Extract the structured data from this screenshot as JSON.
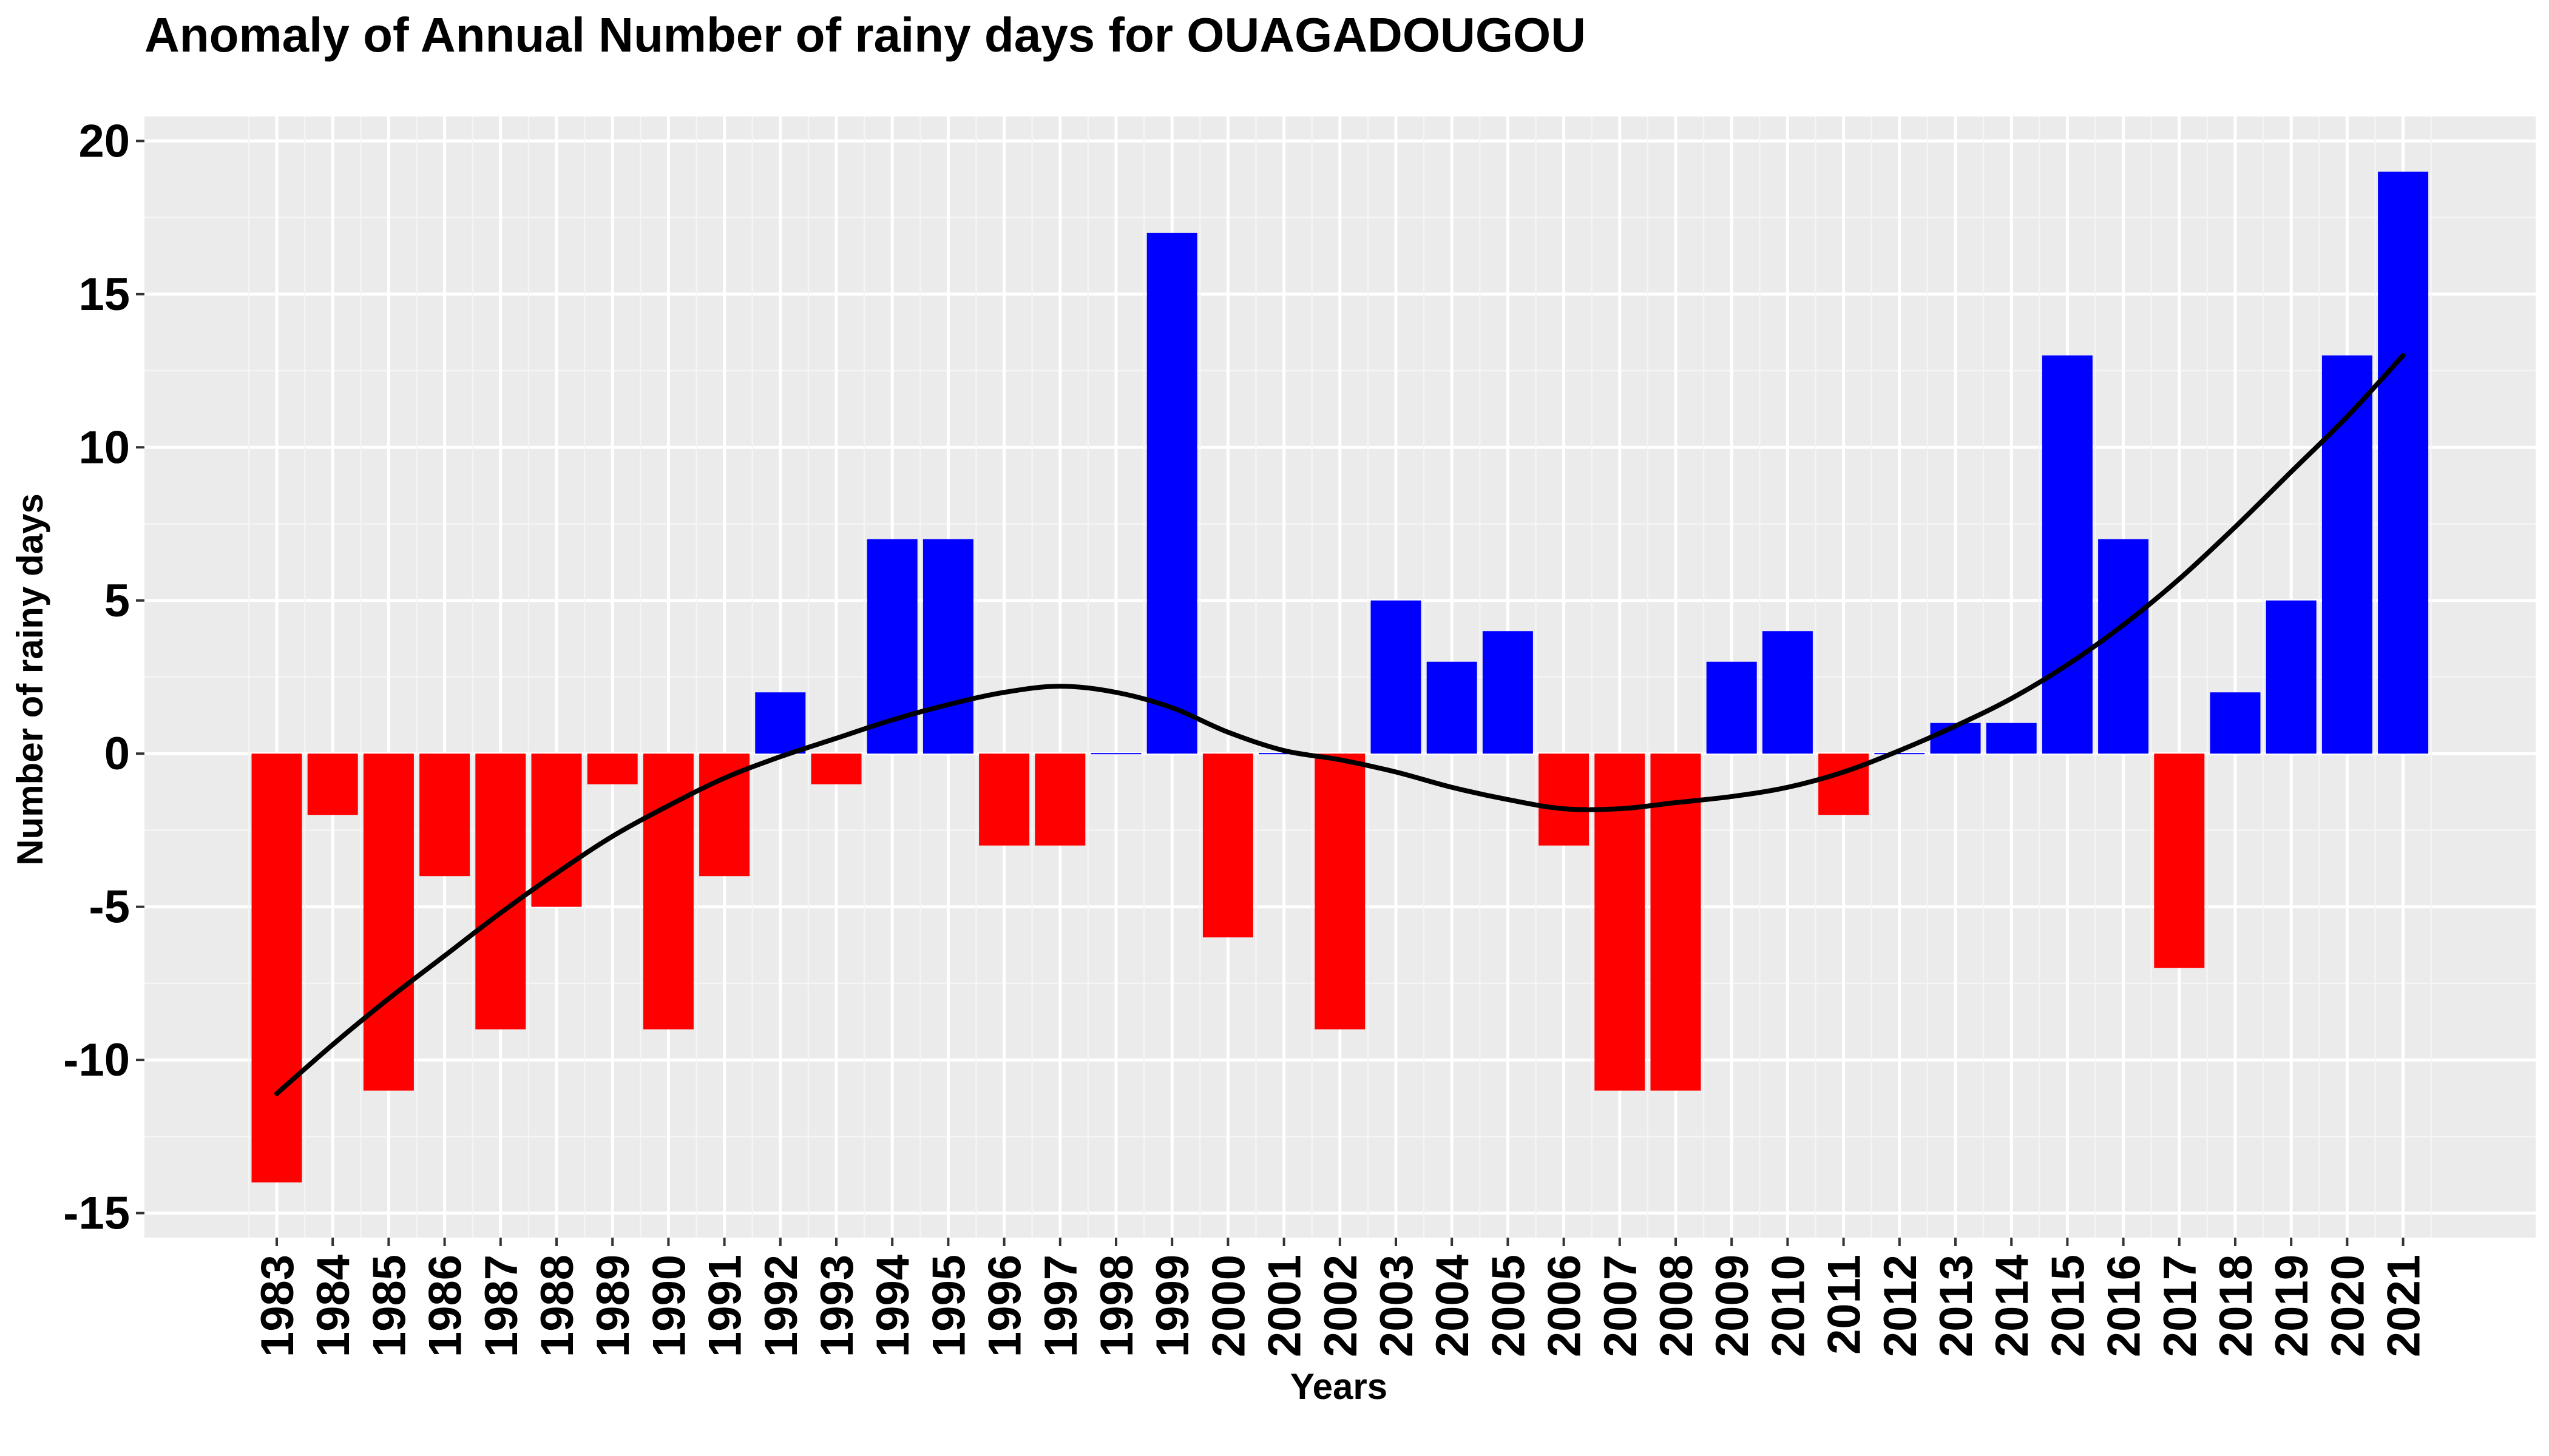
{
  "chart_data": {
    "type": "bar",
    "title": "Anomaly of Annual Number of rainy days for OUAGADOUGOU",
    "xlabel": "Years",
    "ylabel": "Number of rainy days",
    "ylim": [
      -15.8,
      20.8
    ],
    "yticks": [
      20,
      15,
      10,
      5,
      0,
      -5,
      -10,
      -15
    ],
    "ytick_labels": [
      "20",
      "15",
      "10",
      "5",
      "0",
      "-5",
      "-10",
      "-15"
    ],
    "grid": true,
    "categories": [
      "1983",
      "1984",
      "1985",
      "1986",
      "1987",
      "1988",
      "1989",
      "1990",
      "1991",
      "1992",
      "1993",
      "1994",
      "1995",
      "1996",
      "1997",
      "1998",
      "1999",
      "2000",
      "2001",
      "2002",
      "2003",
      "2004",
      "2005",
      "2006",
      "2007",
      "2008",
      "2009",
      "2010",
      "2011",
      "2012",
      "2013",
      "2014",
      "2015",
      "2016",
      "2017",
      "2018",
      "2019",
      "2020",
      "2021"
    ],
    "values": [
      -14,
      -2,
      -11,
      -4,
      -9,
      -5,
      -1,
      -9,
      -4,
      2,
      -1,
      7,
      7,
      -3,
      -3,
      0,
      17,
      -6,
      0,
      -9,
      5,
      3,
      4,
      -3,
      -11,
      -11,
      3,
      4,
      -2,
      0,
      1,
      1,
      13,
      7,
      -7,
      2,
      5,
      13,
      19
    ],
    "trend": {
      "values": [
        -11.1,
        -9.5,
        -8,
        -6.6,
        -5.2,
        -3.9,
        -2.7,
        -1.7,
        -0.8,
        -0.1,
        0.5,
        1.1,
        1.6,
        2,
        2.2,
        2,
        1.5,
        0.7,
        0.1,
        -0.2,
        -0.6,
        -1.1,
        -1.5,
        -1.8,
        -1.8,
        -1.6,
        -1.4,
        -1.1,
        -0.6,
        0.1,
        0.9,
        1.8,
        2.9,
        4.2,
        5.7,
        7.4,
        9.2,
        11,
        13
      ],
      "color": "#000000"
    },
    "colors": {
      "positive": "#0000FF",
      "negative": "#FF0000",
      "panel": "#EBEBEB",
      "grid_major": "#FFFFFF",
      "grid_minor": "#F5F5F5"
    }
  }
}
